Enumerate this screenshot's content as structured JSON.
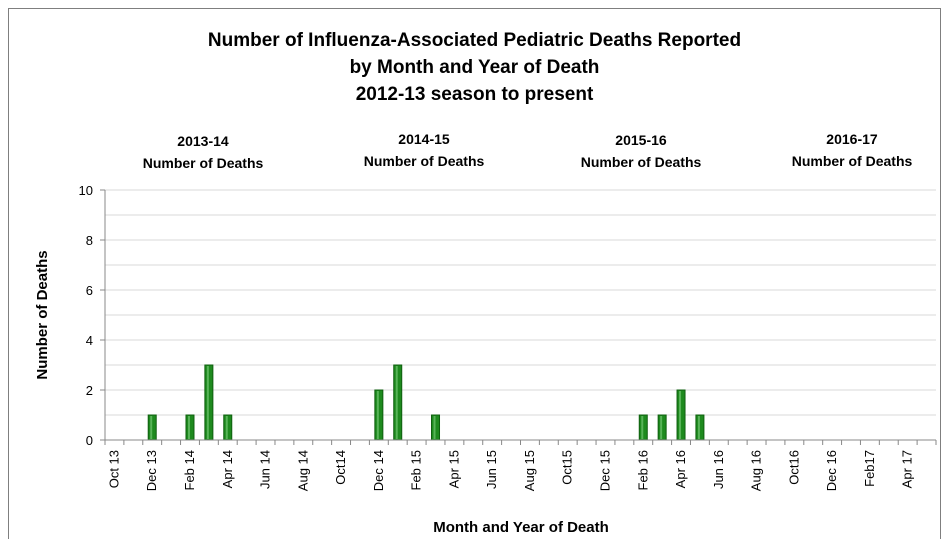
{
  "title_lines": [
    "Number of Influenza-Associated  Pediatric Deaths Reported",
    "by Month and Year of Death",
    "2012-13 season  to present"
  ],
  "seasons": [
    {
      "year": "2013-14",
      "label": "Number of Deaths"
    },
    {
      "year": "2014-15",
      "label": "Number of Deaths"
    },
    {
      "year": "2015-16",
      "label": "Number of Deaths"
    },
    {
      "year": "2016-17",
      "label": "Number of Deaths"
    }
  ],
  "chart_data": {
    "type": "bar",
    "title": "Number of Influenza-Associated Pediatric Deaths Reported by Month and Year of Death 2012-13 season to present",
    "xlabel": "Month and Year of Death",
    "ylabel": "Number of Deaths",
    "ylim": [
      0,
      10
    ],
    "yticks": [
      0,
      2,
      4,
      6,
      8,
      10
    ],
    "grid": true,
    "bar_color": "#1e8a1e",
    "x": [
      "Oct 13",
      "Nov 13",
      "Dec 13",
      "Jan 14",
      "Feb 14",
      "Mar 14",
      "Apr 14",
      "May 14",
      "Jun 14",
      "Jul 14",
      "Aug 14",
      "Sep 14",
      "Oct14",
      "Nov 14",
      "Dec 14",
      "Jan 15",
      "Feb 15",
      "Mar 15",
      "Apr 15",
      "May 15",
      "Jun 15",
      "Jul 15",
      "Aug 15",
      "Sep 15",
      "Oct15",
      "Nov 15",
      "Dec 15",
      "Jan 16",
      "Feb 16",
      "Mar 16",
      "Apr 16",
      "May 16",
      "Jun 16",
      "Jul 16",
      "Aug 16",
      "Sep 16",
      "Oct16",
      "Nov 16",
      "Dec 16",
      "Jan 17",
      "Feb17",
      "Mar 17",
      "Apr 17",
      "May 17"
    ],
    "x_tick_labels": [
      "Oct 13",
      "Dec 13",
      "Feb 14",
      "Apr 14",
      "Jun 14",
      "Aug 14",
      "Oct14",
      "Dec 14",
      "Feb 15",
      "Apr 15",
      "Jun 15",
      "Aug 15",
      "Oct15",
      "Dec 15",
      "Feb 16",
      "Apr 16",
      "Jun 16",
      "Aug 16",
      "Oct16",
      "Dec 16",
      "Feb17",
      "Apr 17"
    ],
    "values": [
      0,
      0,
      1,
      0,
      1,
      3,
      1,
      0,
      0,
      0,
      0,
      0,
      0,
      0,
      2,
      3,
      0,
      1,
      0,
      0,
      0,
      0,
      0,
      0,
      0,
      0,
      0,
      0,
      1,
      1,
      2,
      1,
      0,
      0,
      0,
      0,
      0,
      0,
      0,
      0,
      0,
      0,
      0,
      0
    ]
  }
}
